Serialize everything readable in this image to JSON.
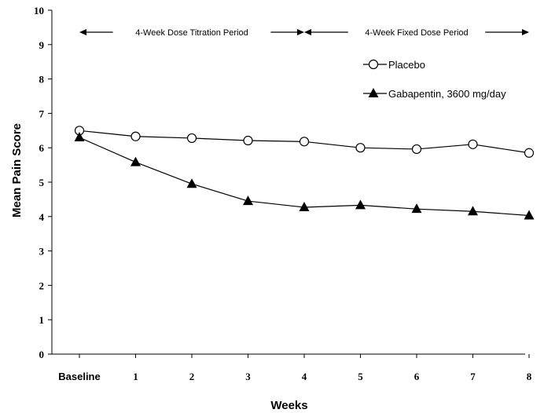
{
  "chart_data": {
    "type": "line",
    "xlabel": "Weeks",
    "ylabel": "Mean Pain Score",
    "ylim": [
      0,
      10
    ],
    "yticks": [
      "0",
      "1",
      "2",
      "3",
      "4",
      "5",
      "6",
      "7",
      "8",
      "9",
      "10"
    ],
    "categories": [
      "Baseline",
      "1",
      "2",
      "3",
      "4",
      "5",
      "6",
      "7",
      "8"
    ],
    "periods": [
      {
        "label": "4-Week Dose Titration Period",
        "from": "Baseline",
        "to": "4"
      },
      {
        "label": "4-Week Fixed Dose Period",
        "from": "4",
        "to": "8"
      }
    ],
    "legend_position": "top-right",
    "series": [
      {
        "name": "Placebo",
        "marker": "open-circle",
        "color": "#000000",
        "values": [
          6.5,
          6.33,
          6.28,
          6.21,
          6.18,
          6.0,
          5.96,
          6.1,
          5.85
        ]
      },
      {
        "name": "Gabapentin, 3600 mg/day",
        "marker": "filled-triangle",
        "color": "#000000",
        "values": [
          6.3,
          5.58,
          4.95,
          4.45,
          4.27,
          4.33,
          4.22,
          4.15,
          4.03
        ]
      }
    ]
  }
}
